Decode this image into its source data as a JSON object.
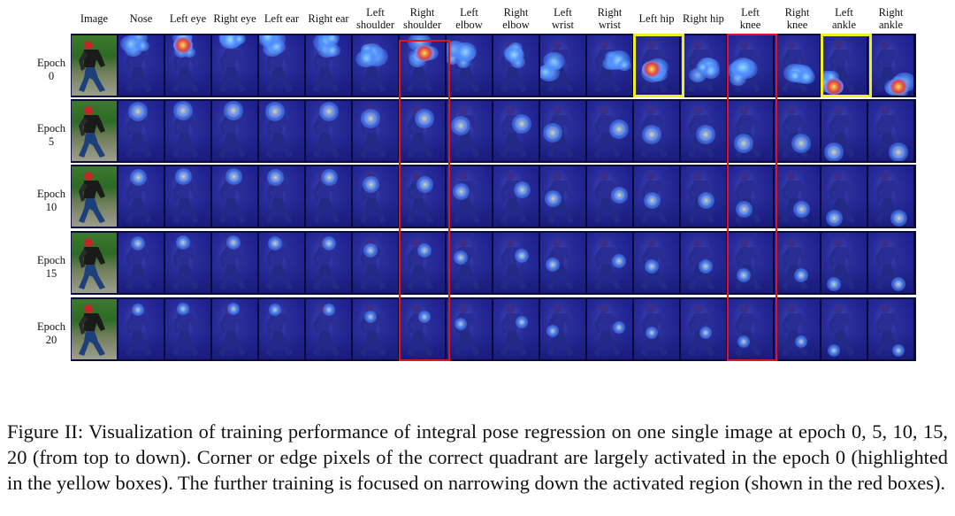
{
  "figure": {
    "columns": [
      "Image",
      "Nose",
      "Left eye",
      "Right eye",
      "Left ear",
      "Right ear",
      "Left\nshoulder",
      "Right\nshoulder",
      "Left\nelbow",
      "Right\nelbow",
      "Left\nwrist",
      "Right\nwrist",
      "Left hip",
      "Right hip",
      "Left\nknee",
      "Right\nknee",
      "Left\nankle",
      "Right\nankle"
    ],
    "rows": [
      "Epoch\n0",
      "Epoch\n5",
      "Epoch\n10",
      "Epoch\n15",
      "Epoch\n20"
    ],
    "highlight_colors": {
      "yellow": "#f2ee1a",
      "red": "#e0141e"
    },
    "heatmap_colors": {
      "background": "#1e1f8e",
      "activation_hot": "#ff3a2a",
      "activation_cool": "#4f8dff"
    }
  },
  "caption": "Figure II: Visualization of training performance of integral pose regression on one single image at epoch 0, 5, 10, 15, 20 (from top to down). Corner or edge pixels of the correct quadrant are largely activated in the epoch 0 (highlighted in the yellow boxes). The further training is focused on narrowing down the activated region (shown in the red boxes)."
}
